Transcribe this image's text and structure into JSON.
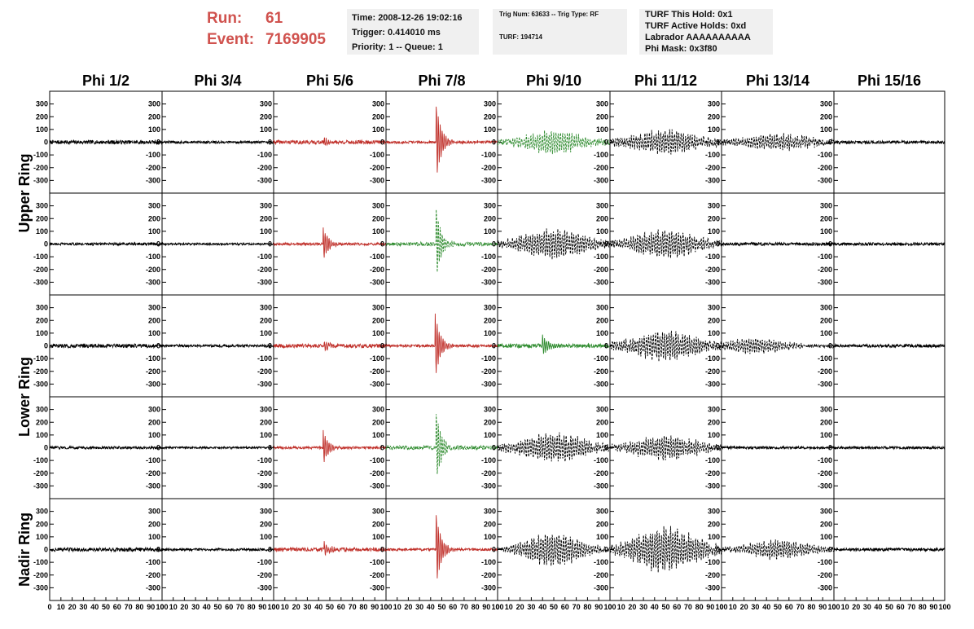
{
  "header": {
    "run_label": "Run:",
    "run_value": "61",
    "event_label": "Event:",
    "event_value": "7169905"
  },
  "time_box": {
    "time": "Time: 2008-12-26 19:02:16",
    "trigger": "Trigger: 0.414010 ms",
    "priority": "Priority: 1 -- Queue: 1"
  },
  "trig_box": {
    "trig": "Trig Num: 63633 -- Trig Type: RF",
    "turf": "TURF: 194714"
  },
  "turf_box": {
    "this_hold": "TURF This Hold: 0x1",
    "active_holds": "TURF Active Holds: 0xd",
    "labrador": "Labrador AAAAAAAAAA",
    "phi_mask": "Phi Mask: 0x3f80"
  },
  "chart_data": {
    "type": "line",
    "title": "",
    "columns": [
      "Phi 1/2",
      "Phi 3/4",
      "Phi 5/6",
      "Phi 7/8",
      "Phi 9/10",
      "Phi 11/12",
      "Phi 13/14",
      "Phi 15/16"
    ],
    "ring_labels": [
      "Upper Ring",
      "Lower Ring",
      "Nadir Ring"
    ],
    "ylim": [
      -400,
      400
    ],
    "yticks": [
      -300,
      -200,
      -100,
      0,
      100,
      200,
      300
    ],
    "xlim": [
      0,
      100
    ],
    "xticks": [
      0,
      10,
      20,
      30,
      40,
      50,
      60,
      70,
      80,
      90,
      100
    ],
    "colors": {
      "normal": "#000000",
      "triggered": "#c0302a",
      "neighbor": "#2e8b2e"
    },
    "panels": [
      [
        {
          "c": "normal",
          "a": 15,
          "b": 0
        },
        {
          "c": "normal",
          "a": 10,
          "b": 0
        },
        {
          "c": "triggered",
          "a": 15,
          "b": 45,
          "p": 30
        },
        {
          "c": "triggered",
          "a": 10,
          "b": 45,
          "p": 300
        },
        {
          "c": "neighbor",
          "a": 20,
          "b": 50,
          "p": 90,
          "w": 30,
          "d": 1
        },
        {
          "c": "normal",
          "a": 25,
          "b": 50,
          "p": 90,
          "w": 35,
          "d": 1
        },
        {
          "c": "normal",
          "a": 20,
          "b": 50,
          "p": 60,
          "w": 35,
          "d": 1
        },
        {
          "c": "normal",
          "a": 12,
          "b": 0
        }
      ],
      [
        {
          "c": "normal",
          "a": 10,
          "b": 0
        },
        {
          "c": "normal",
          "a": 8,
          "b": 0
        },
        {
          "c": "triggered",
          "a": 10,
          "b": 44,
          "p": 140
        },
        {
          "c": "neighbor",
          "a": 15,
          "b": 45,
          "p": 280,
          "d": 1
        },
        {
          "c": "normal",
          "a": 20,
          "b": 50,
          "p": 110,
          "w": 35,
          "d": 1
        },
        {
          "c": "normal",
          "a": 20,
          "b": 50,
          "p": 110,
          "w": 35,
          "d": 1
        },
        {
          "c": "normal",
          "a": 12,
          "b": 0
        },
        {
          "c": "normal",
          "a": 12,
          "b": 0
        }
      ],
      [
        {
          "c": "normal",
          "a": 15,
          "b": 0
        },
        {
          "c": "normal",
          "a": 10,
          "b": 0
        },
        {
          "c": "triggered",
          "a": 15,
          "b": 45,
          "p": 40
        },
        {
          "c": "triggered",
          "a": 10,
          "b": 44,
          "p": 260
        },
        {
          "c": "neighbor",
          "a": 15,
          "b": 40,
          "p": 90
        },
        {
          "c": "normal",
          "a": 25,
          "b": 50,
          "p": 110,
          "w": 35,
          "d": 1
        },
        {
          "c": "normal",
          "a": 15,
          "b": 30,
          "p": 60,
          "w": 30,
          "d": 1
        },
        {
          "c": "normal",
          "a": 12,
          "b": 0
        }
      ],
      [
        {
          "c": "normal",
          "a": 10,
          "b": 0
        },
        {
          "c": "normal",
          "a": 8,
          "b": 0
        },
        {
          "c": "triggered",
          "a": 10,
          "b": 44,
          "p": 140
        },
        {
          "c": "neighbor",
          "a": 15,
          "b": 45,
          "p": 280,
          "d": 1
        },
        {
          "c": "normal",
          "a": 20,
          "b": 50,
          "p": 110,
          "w": 35,
          "d": 1
        },
        {
          "c": "normal",
          "a": 20,
          "b": 50,
          "p": 90,
          "w": 35,
          "d": 1
        },
        {
          "c": "normal",
          "a": 10,
          "b": 0
        },
        {
          "c": "normal",
          "a": 10,
          "b": 0
        }
      ],
      [
        {
          "c": "normal",
          "a": 15,
          "b": 0
        },
        {
          "c": "normal",
          "a": 10,
          "b": 0
        },
        {
          "c": "triggered",
          "a": 15,
          "b": 45,
          "p": 60
        },
        {
          "c": "triggered",
          "a": 10,
          "b": 45,
          "p": 280
        },
        {
          "c": "normal",
          "a": 15,
          "b": 50,
          "p": 130,
          "w": 30,
          "d": 1
        },
        {
          "c": "normal",
          "a": 25,
          "b": 50,
          "p": 170,
          "w": 35,
          "d": 1
        },
        {
          "c": "normal",
          "a": 15,
          "b": 50,
          "p": 70,
          "w": 35,
          "d": 1
        },
        {
          "c": "normal",
          "a": 12,
          "b": 0
        }
      ]
    ]
  }
}
